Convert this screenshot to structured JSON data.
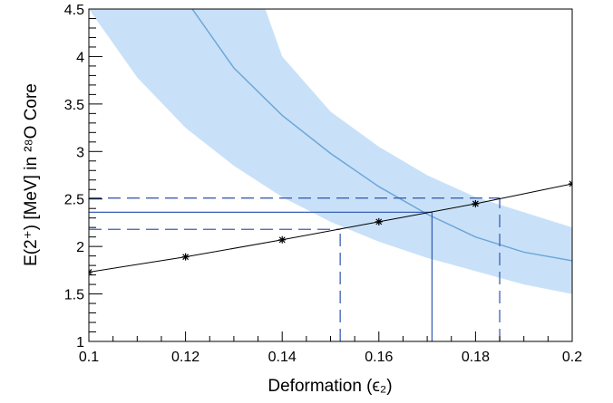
{
  "chart_data": {
    "type": "line",
    "xlabel": "Deformation (ϵ₂)",
    "ylabel": "E(2⁺) [MeV] in ²⁸O Core",
    "xlim": [
      0.1,
      0.2
    ],
    "ylim": [
      1,
      4.5
    ],
    "x_ticks": [
      "0.1",
      "0.12",
      "0.14",
      "0.16",
      "0.18",
      "0.2"
    ],
    "y_ticks": [
      "1",
      "1.5",
      "2",
      "2.5",
      "3",
      "3.5",
      "4",
      "4.5"
    ],
    "grid": false,
    "series": [
      {
        "kind": "points-line",
        "color": "#000000",
        "x": [
          0.1,
          0.12,
          0.14,
          0.16,
          0.18,
          0.2
        ],
        "y": [
          1.73,
          1.89,
          2.07,
          2.26,
          2.45,
          2.66
        ]
      },
      {
        "kind": "central-curve",
        "color": "#6fa6d8",
        "x": [
          0.1214,
          0.13,
          0.14,
          0.15,
          0.16,
          0.17,
          0.18,
          0.19,
          0.2
        ],
        "y": [
          4.5,
          3.88,
          3.38,
          2.98,
          2.63,
          2.34,
          2.1,
          1.94,
          1.85
        ]
      },
      {
        "kind": "band-upper",
        "color": "#c8e1f8",
        "x": [
          0.1365,
          0.14,
          0.15,
          0.16,
          0.17,
          0.18,
          0.19,
          0.2
        ],
        "y": [
          4.5,
          4.0,
          3.42,
          3.05,
          2.75,
          2.52,
          2.36,
          2.2
        ]
      },
      {
        "kind": "band-lower",
        "color": "#c8e1f8",
        "x": [
          0.1,
          0.11,
          0.12,
          0.13,
          0.14,
          0.15,
          0.16,
          0.17,
          0.18,
          0.19,
          0.2
        ],
        "y": [
          4.5,
          3.78,
          3.25,
          2.85,
          2.52,
          2.26,
          2.05,
          1.88,
          1.74,
          1.6,
          1.5
        ]
      }
    ],
    "reference_lines": [
      {
        "id": "lower-dashed-h",
        "from": [
          0.1,
          2.18
        ],
        "to": [
          0.152,
          2.18
        ],
        "style": "dashed"
      },
      {
        "id": "lower-dashed-v",
        "from": [
          0.152,
          1.0
        ],
        "to": [
          0.152,
          2.18
        ],
        "style": "dashed"
      },
      {
        "id": "central-h",
        "from": [
          0.1,
          2.36
        ],
        "to": [
          0.171,
          2.36
        ],
        "style": "solid"
      },
      {
        "id": "central-v",
        "from": [
          0.171,
          1.0
        ],
        "to": [
          0.171,
          2.36
        ],
        "style": "solid"
      },
      {
        "id": "upper-dashed-h",
        "from": [
          0.1,
          2.51
        ],
        "to": [
          0.185,
          2.51
        ],
        "style": "dashed"
      },
      {
        "id": "upper-dashed-v",
        "from": [
          0.185,
          1.0
        ],
        "to": [
          0.185,
          2.51
        ],
        "style": "dashed"
      }
    ],
    "reference_color": "#3c5fb4"
  }
}
